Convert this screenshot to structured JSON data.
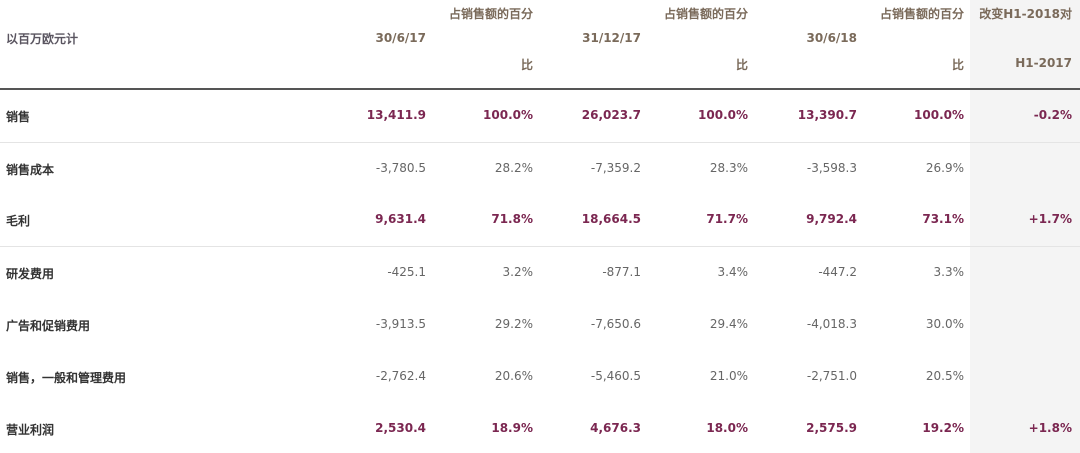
{
  "header": {
    "units": "以百万欧元计",
    "pct_line1": "占销售额的百分",
    "pct_line2": "比",
    "periods": [
      "30/6/17",
      "31/12/17",
      "30/6/18"
    ],
    "change_line1": "改变H1-2018对",
    "change_line2": "H1-2017"
  },
  "rows": [
    {
      "label": "销售",
      "v1": "13,411.9",
      "p1": "100.0%",
      "v2": "26,023.7",
      "p2": "100.0%",
      "v3": "13,390.7",
      "p3": "100.0%",
      "change": "-0.2%"
    },
    {
      "label": "销售成本",
      "v1": "-3,780.5",
      "p1": "28.2%",
      "v2": "-7,359.2",
      "p2": "28.3%",
      "v3": "-3,598.3",
      "p3": "26.9%",
      "change": ""
    },
    {
      "label": "毛利",
      "v1": "9,631.4",
      "p1": "71.8%",
      "v2": "18,664.5",
      "p2": "71.7%",
      "v3": "9,792.4",
      "p3": "73.1%",
      "change": "+1.7%"
    },
    {
      "label": "研发费用",
      "v1": "-425.1",
      "p1": "3.2%",
      "v2": "-877.1",
      "p2": "3.4%",
      "v3": "-447.2",
      "p3": "3.3%",
      "change": ""
    },
    {
      "label": "广告和促销费用",
      "v1": "-3,913.5",
      "p1": "29.2%",
      "v2": "-7,650.6",
      "p2": "29.4%",
      "v3": "-4,018.3",
      "p3": "30.0%",
      "change": ""
    },
    {
      "label": "销售，一般和管理费用",
      "v1": "-2,762.4",
      "p1": "20.6%",
      "v2": "-5,460.5",
      "p2": "21.0%",
      "v3": "-2,751.0",
      "p3": "20.5%",
      "change": ""
    },
    {
      "label": "营业利润",
      "v1": "2,530.4",
      "p1": "18.9%",
      "v2": "4,676.3",
      "p2": "18.0%",
      "v3": "2,575.9",
      "p3": "19.2%",
      "change": "+1.8%"
    }
  ]
}
